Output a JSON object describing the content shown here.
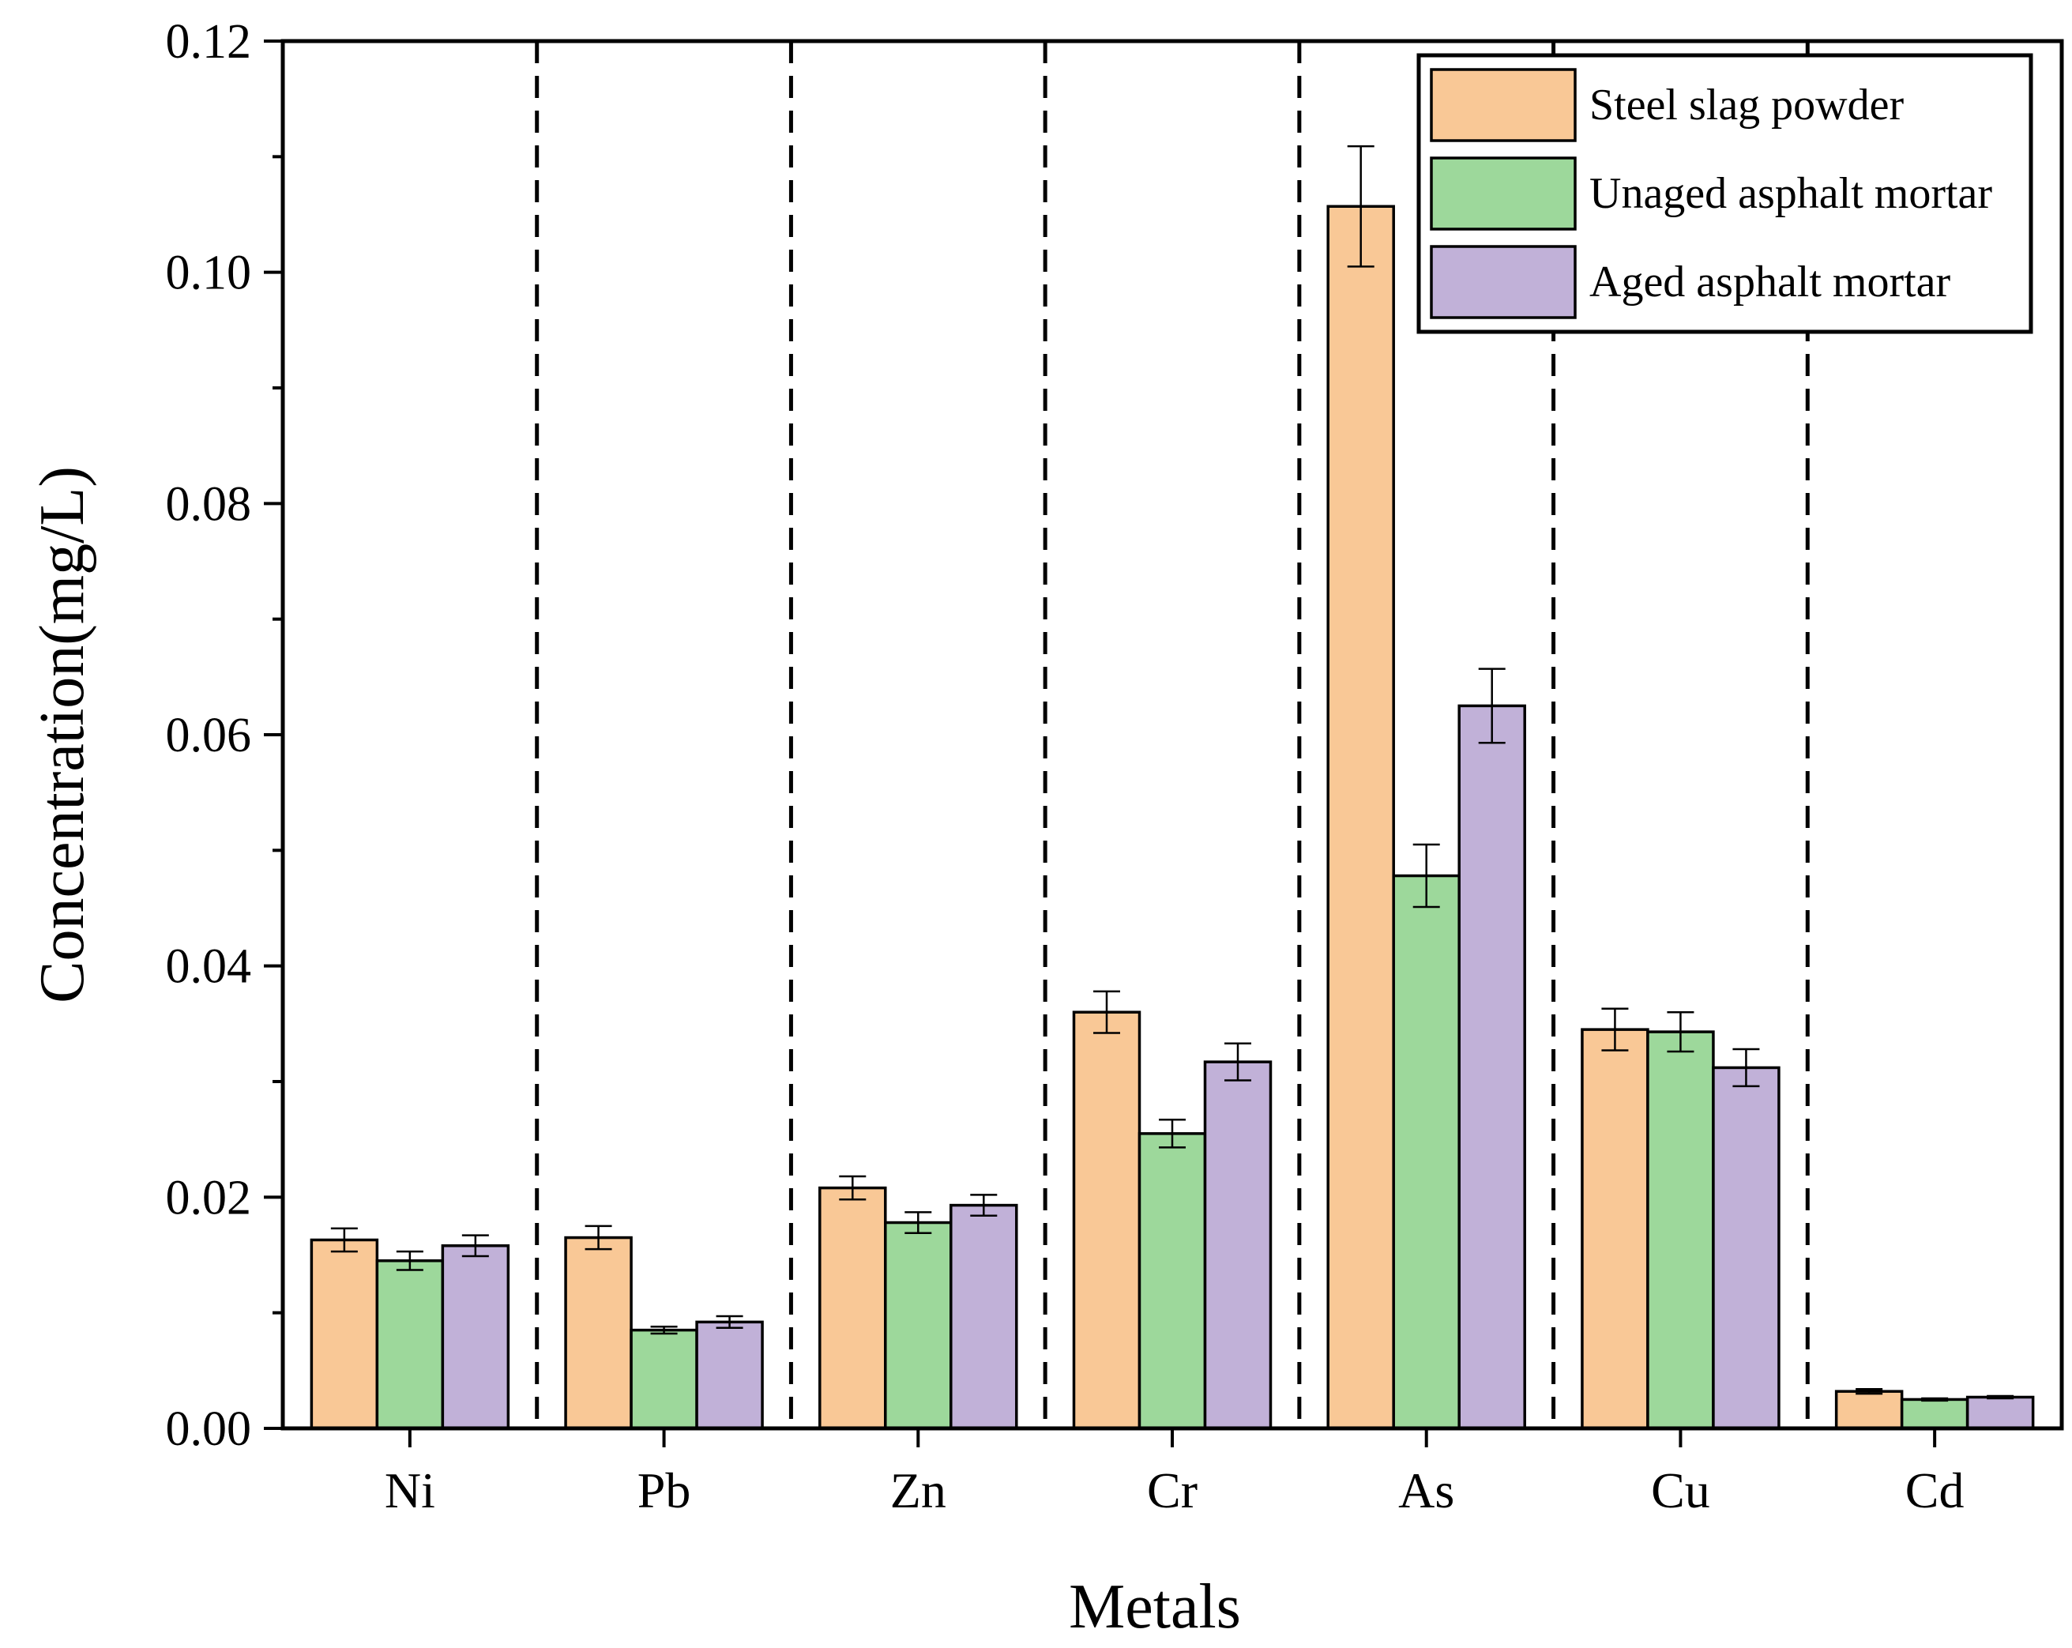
{
  "chart_data": {
    "type": "bar",
    "title": "",
    "xlabel": "Metals",
    "ylabel": "Concentration(mg/L)",
    "ylim": [
      0,
      0.12
    ],
    "yticks": [
      "0.00",
      "0.02",
      "0.04",
      "0.06",
      "0.08",
      "0.10",
      "0.12"
    ],
    "ytick_values": [
      0,
      0.02,
      0.04,
      0.06,
      0.08,
      0.1,
      0.12
    ],
    "categories": [
      "Ni",
      "Pb",
      "Zn",
      "Cr",
      "As",
      "Cu",
      "Cd"
    ],
    "series": [
      {
        "name": "Steel slag powder",
        "color": "#F9C896",
        "values": [
          0.0163,
          0.0165,
          0.0208,
          0.036,
          0.1057,
          0.0345,
          0.0032
        ],
        "errors": [
          0.001,
          0.001,
          0.001,
          0.0018,
          0.0052,
          0.0018,
          0.0002
        ]
      },
      {
        "name": "Unaged asphalt mortar",
        "color": "#9DD89B",
        "values": [
          0.0145,
          0.0085,
          0.0178,
          0.0255,
          0.0478,
          0.0343,
          0.0025
        ],
        "errors": [
          0.0008,
          0.0003,
          0.0009,
          0.0012,
          0.0027,
          0.0017,
          0.0001
        ]
      },
      {
        "name": "Aged asphalt mortar",
        "color": "#C1B1D8",
        "values": [
          0.0158,
          0.0092,
          0.0193,
          0.0317,
          0.0625,
          0.0312,
          0.0027
        ],
        "errors": [
          0.0009,
          0.0005,
          0.0009,
          0.0016,
          0.0032,
          0.0016,
          0.0001
        ]
      }
    ],
    "grid": false,
    "legend_position": "top-right",
    "separators": "dashed vertical lines between categories"
  }
}
